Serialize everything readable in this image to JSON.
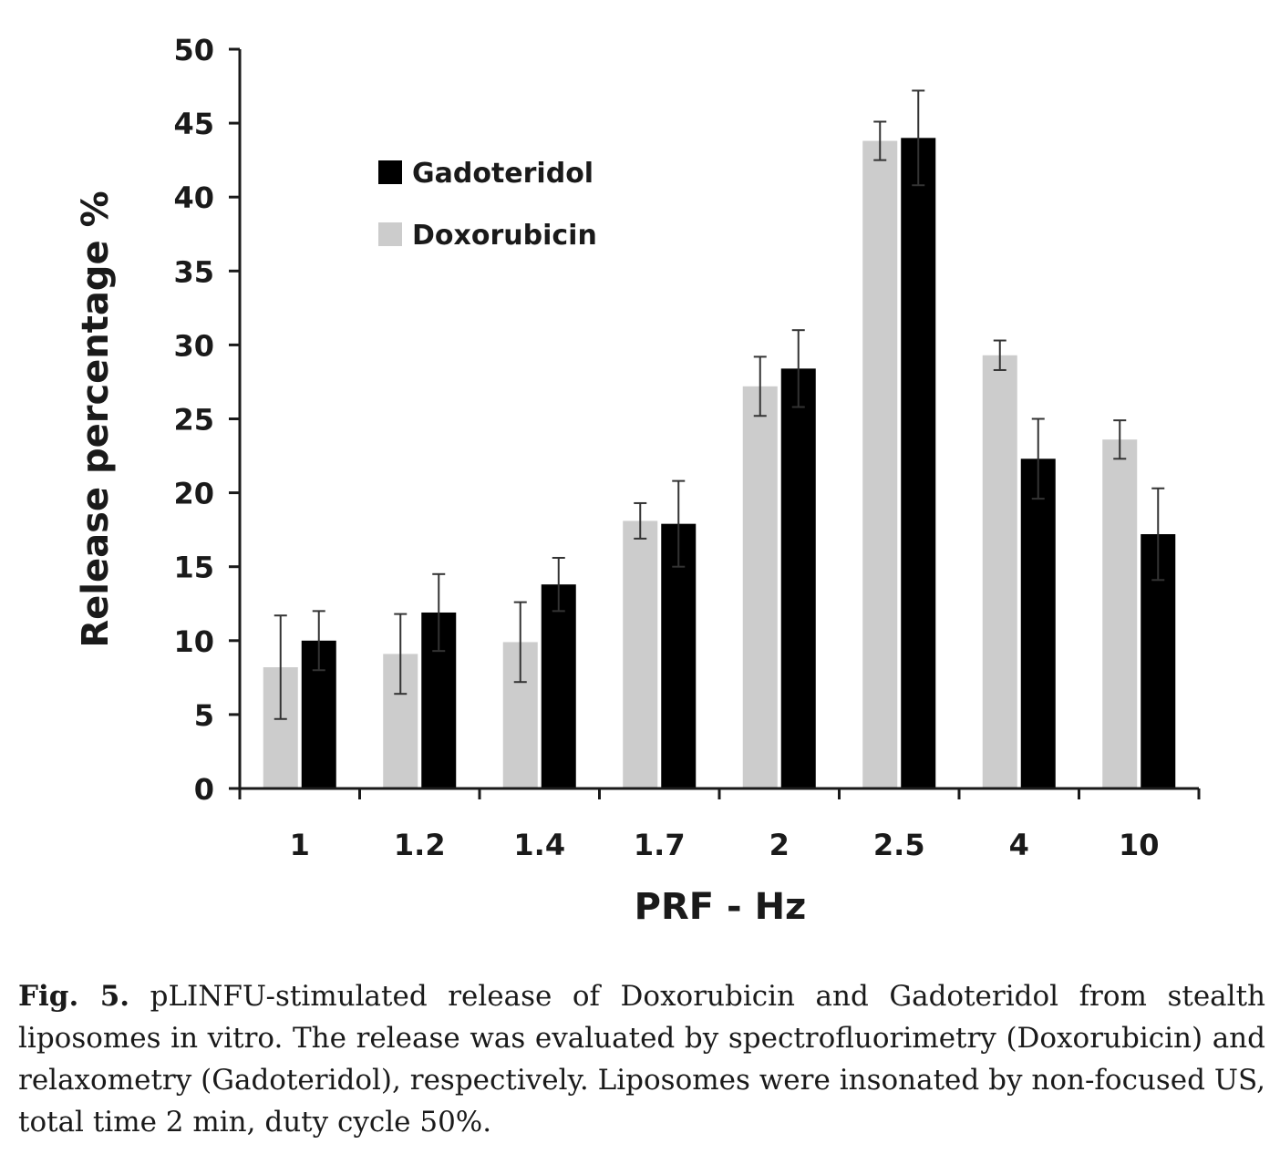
{
  "chart_data": {
    "type": "bar",
    "categories": [
      "1",
      "1.2",
      "1.4",
      "1.7",
      "2",
      "2.5",
      "4",
      "10"
    ],
    "series": [
      {
        "name": "Doxorubicin",
        "color": "#cccccc",
        "values": [
          8.2,
          9.1,
          9.9,
          18.1,
          27.2,
          43.8,
          29.3,
          23.6
        ],
        "error": [
          3.5,
          2.7,
          2.7,
          1.2,
          2.0,
          1.3,
          1.0,
          1.3
        ]
      },
      {
        "name": "Gadoteridol",
        "color": "#000000",
        "values": [
          10.0,
          11.9,
          13.8,
          17.9,
          28.4,
          44.0,
          22.3,
          17.2
        ],
        "error": [
          2.0,
          2.6,
          1.8,
          2.9,
          2.6,
          3.2,
          2.7,
          3.1
        ]
      }
    ],
    "title": "",
    "xlabel": "PRF - Hz",
    "ylabel": "Release percentage %",
    "ylim": [
      0,
      50
    ],
    "yticks": [
      "0",
      "5",
      "10",
      "15",
      "20",
      "25",
      "30",
      "35",
      "40",
      "45",
      "50"
    ],
    "grid": false,
    "legend": {
      "placement": "top-left",
      "entries": [
        {
          "label": "Gadoteridol",
          "color": "#000000"
        },
        {
          "label": "Doxorubicin",
          "color": "#cccccc"
        }
      ]
    }
  },
  "caption": {
    "label": "Fig. 5.",
    "text": "pLINFU-stimulated release of Doxorubicin and Gadoteridol from stealth liposomes in vitro. The release was evaluated by spectrofluorimetry (Doxorubicin) and relaxometry (Gadoteridol), respectively. Liposomes were insonated by non-focused US, total time 2 min, duty cycle 50%."
  }
}
